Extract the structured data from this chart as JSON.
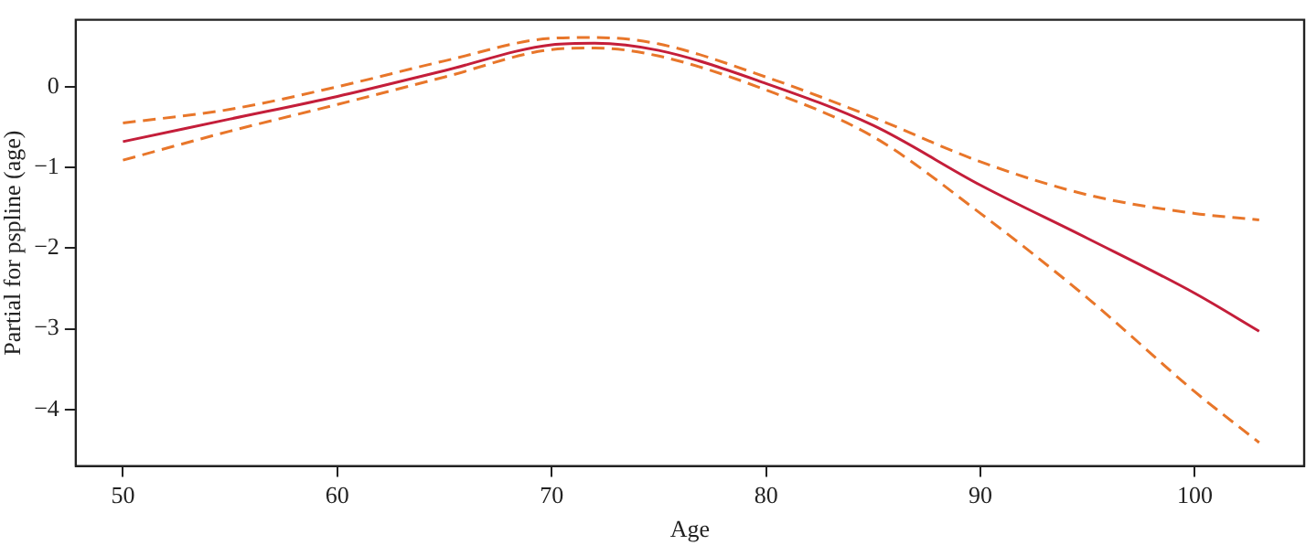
{
  "chart_data": {
    "type": "line",
    "xlabel": "Age",
    "ylabel": "Partial for pspline (age)",
    "x": [
      50,
      55,
      60,
      65,
      70,
      72,
      75,
      80,
      85,
      90,
      95,
      100,
      103
    ],
    "xlim": [
      47.8,
      105.1
    ],
    "xticks": [
      50,
      60,
      70,
      80,
      90,
      100
    ],
    "ylim": [
      -4.7,
      0.83
    ],
    "yticks": [
      -4,
      -3,
      -2,
      -1,
      0
    ],
    "grid": false,
    "legend": false,
    "marker": "none",
    "series": [
      {
        "color": "#c41e3a",
        "line_style": "solid",
        "values": [
          -0.68,
          -0.4,
          -0.12,
          0.2,
          0.52,
          0.54,
          0.45,
          0.04,
          -0.48,
          -1.22,
          -1.88,
          -2.56,
          -3.03
        ]
      },
      {
        "color": "#e8762a",
        "line_style": "dashed",
        "values": [
          -0.45,
          -0.28,
          0.0,
          0.32,
          0.6,
          0.61,
          0.53,
          0.12,
          -0.38,
          -0.93,
          -1.34,
          -1.57,
          -1.65
        ]
      },
      {
        "color": "#e8762a",
        "line_style": "dashed",
        "values": [
          -0.91,
          -0.55,
          -0.22,
          0.12,
          0.46,
          0.48,
          0.38,
          -0.04,
          -0.62,
          -1.57,
          -2.62,
          -3.78,
          -4.41
        ]
      }
    ]
  }
}
